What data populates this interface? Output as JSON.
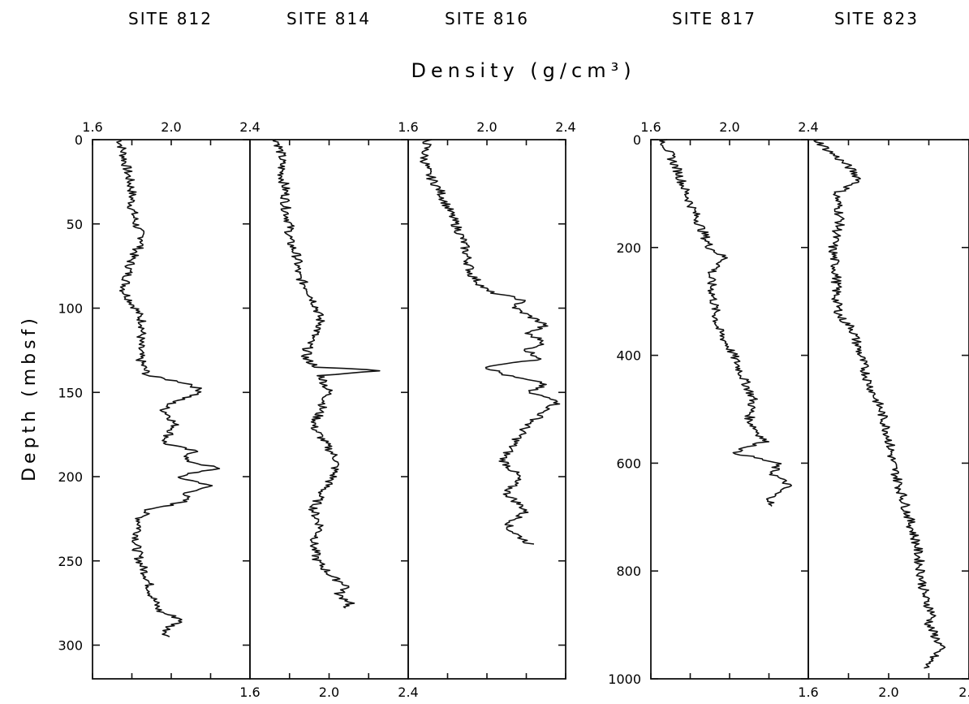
{
  "chart_data": {
    "type": "line",
    "title": "Density (g/cm³)",
    "ylabel": "Depth (mbsf)",
    "panels": [
      {
        "name": "SITE 812",
        "xlim": [
          1.6,
          2.4
        ],
        "ylim": [
          0,
          320
        ],
        "xticks": [
          "1.6",
          "2.0",
          "2.4"
        ],
        "yticks": [
          "0",
          "50",
          "100",
          "150",
          "200",
          "250",
          "300"
        ],
        "series": [
          {
            "depth": [
              0,
              10,
              20,
              30,
              40,
              50,
              60,
              70,
              80,
              90,
              100,
              110,
              120,
              130,
              140,
              145,
              150,
              155,
              160,
              165,
              170,
              180,
              185,
              190,
              195,
              200,
              205,
              210,
              215,
              220,
              225,
              230,
              240,
              250,
              260,
              270,
              280,
              285,
              290,
              295
            ],
            "density": [
              1.74,
              1.76,
              1.78,
              1.8,
              1.8,
              1.82,
              1.86,
              1.8,
              1.78,
              1.76,
              1.82,
              1.86,
              1.84,
              1.84,
              1.88,
              2.1,
              2.16,
              2.02,
              1.96,
              2.0,
              2.02,
              1.96,
              2.12,
              2.06,
              2.24,
              2.02,
              2.2,
              2.08,
              2.06,
              1.88,
              1.84,
              1.84,
              1.82,
              1.84,
              1.88,
              1.9,
              1.94,
              2.06,
              1.98,
              1.98
            ]
          }
        ]
      },
      {
        "name": "SITE 814",
        "xlim": [
          1.6,
          2.4
        ],
        "ylim": [
          0,
          320
        ],
        "xticks": [
          "1.6",
          "2.0",
          "2.4"
        ],
        "series": [
          {
            "depth": [
              0,
              10,
              20,
              30,
              40,
              50,
              60,
              70,
              80,
              90,
              100,
              110,
              120,
              130,
              135,
              137,
              140,
              150,
              160,
              170,
              180,
              190,
              200,
              210,
              220,
              230,
              240,
              250,
              260,
              265,
              270,
              275,
              278
            ],
            "density": [
              1.74,
              1.76,
              1.76,
              1.78,
              1.78,
              1.8,
              1.8,
              1.84,
              1.84,
              1.9,
              1.94,
              1.96,
              1.9,
              1.88,
              1.94,
              2.26,
              1.96,
              2.0,
              1.96,
              1.92,
              1.98,
              2.04,
              2.02,
              1.96,
              1.92,
              1.96,
              1.92,
              1.94,
              2.02,
              2.1,
              2.04,
              2.12,
              2.06
            ]
          }
        ]
      },
      {
        "name": "SITE 816",
        "xlim": [
          1.6,
          2.4
        ],
        "ylim": [
          0,
          320
        ],
        "xticks": [
          "1.6",
          "2.0",
          "2.4"
        ],
        "series": [
          {
            "depth": [
              0,
              10,
              20,
              30,
              40,
              50,
              60,
              70,
              80,
              90,
              95,
              100,
              110,
              115,
              120,
              125,
              130,
              135,
              140,
              145,
              150,
              155,
              160,
              165,
              170,
              180,
              190,
              200,
              210,
              220,
              230,
              240
            ],
            "density": [
              1.7,
              1.68,
              1.7,
              1.76,
              1.8,
              1.84,
              1.88,
              1.9,
              1.92,
              2.0,
              2.18,
              2.14,
              2.3,
              2.2,
              2.3,
              2.2,
              2.28,
              2.0,
              2.1,
              2.3,
              2.2,
              2.38,
              2.3,
              2.26,
              2.2,
              2.14,
              2.08,
              2.16,
              2.1,
              2.2,
              2.1,
              2.22
            ]
          }
        ]
      },
      {
        "name": "SITE 817",
        "xlim": [
          1.6,
          2.4
        ],
        "ylim": [
          0,
          1000
        ],
        "xticks": [
          "1.6",
          "2.0",
          "2.4"
        ],
        "yticks": [
          "0",
          "200",
          "400",
          "600",
          "800",
          "1000"
        ],
        "series": [
          {
            "depth": [
              0,
              30,
              60,
              100,
              150,
              200,
              220,
              250,
              300,
              350,
              400,
              450,
              480,
              520,
              560,
              580,
              600,
              620,
              640,
              660,
              680
            ],
            "density": [
              1.66,
              1.7,
              1.74,
              1.78,
              1.84,
              1.9,
              1.98,
              1.9,
              1.92,
              1.94,
              2.02,
              2.08,
              2.12,
              2.1,
              2.18,
              2.02,
              2.24,
              2.22,
              2.3,
              2.22,
              2.2
            ]
          }
        ]
      },
      {
        "name": "SITE 823",
        "xlim": [
          1.6,
          2.4
        ],
        "ylim": [
          0,
          1000
        ],
        "xticks": [
          "1.6",
          "2.0",
          "2.4"
        ],
        "series": [
          {
            "depth": [
              0,
              20,
              50,
              75,
              100,
              150,
              200,
              250,
              300,
              330,
              350,
              400,
              450,
              500,
              550,
              600,
              650,
              700,
              750,
              800,
              850,
              880,
              900,
              940,
              980
            ],
            "density": [
              1.64,
              1.7,
              1.8,
              1.86,
              1.74,
              1.76,
              1.72,
              1.74,
              1.74,
              1.76,
              1.82,
              1.86,
              1.9,
              1.96,
              2.0,
              2.02,
              2.06,
              2.1,
              2.14,
              2.16,
              2.18,
              2.22,
              2.2,
              2.26,
              2.18
            ]
          }
        ]
      }
    ]
  }
}
